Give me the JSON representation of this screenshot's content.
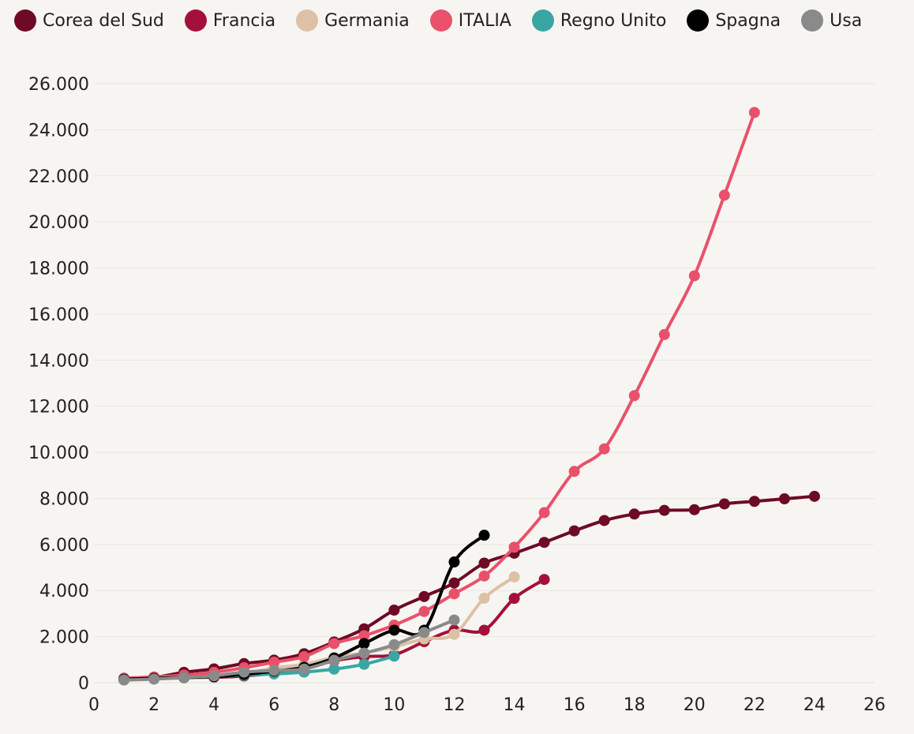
{
  "chart_data": {
    "type": "line",
    "title": "",
    "xlabel": "",
    "ylabel": "",
    "xlim": [
      0,
      26
    ],
    "ylim": [
      0,
      26000
    ],
    "x_ticks": [
      0,
      2,
      4,
      6,
      8,
      10,
      12,
      14,
      16,
      18,
      20,
      22,
      24,
      26
    ],
    "y_ticks": [
      0,
      2000,
      4000,
      6000,
      8000,
      10000,
      12000,
      14000,
      16000,
      18000,
      20000,
      22000,
      24000,
      26000
    ],
    "y_tick_labels": [
      "0",
      "2.000",
      "4.000",
      "6.000",
      "8.000",
      "10.000",
      "12.000",
      "14.000",
      "16.000",
      "18.000",
      "20.000",
      "22.000",
      "24.000",
      "26.000"
    ],
    "x_tick_labels": [
      "0",
      "2",
      "4",
      "6",
      "8",
      "10",
      "12",
      "14",
      "16",
      "18",
      "20",
      "22",
      "24",
      "26"
    ],
    "legend_position": "top",
    "grid": true,
    "series": [
      {
        "name": "Corea del Sud",
        "color": "#6e0a25",
        "x": [
          1,
          2,
          3,
          4,
          5,
          6,
          7,
          8,
          9,
          10,
          11,
          12,
          13,
          14,
          15,
          16,
          17,
          18,
          19,
          20,
          21,
          22,
          23,
          24
        ],
        "values": [
          150,
          230,
          450,
          600,
          830,
          980,
          1260,
          1770,
          2340,
          3150,
          3740,
          4330,
          5190,
          5620,
          6090,
          6590,
          7040,
          7320,
          7480,
          7510,
          7760,
          7870,
          7980,
          8090
        ]
      },
      {
        "name": "Francia",
        "color": "#a5103b",
        "x": [
          1,
          2,
          3,
          4,
          5,
          6,
          7,
          8,
          9,
          10,
          11,
          12,
          13,
          14,
          15
        ],
        "values": [
          130,
          190,
          210,
          230,
          290,
          420,
          620,
          950,
          1130,
          1210,
          1780,
          2280,
          2280,
          3660,
          4480
        ]
      },
      {
        "name": "Germania",
        "color": "#dcc1a5",
        "x": [
          1,
          2,
          3,
          4,
          5,
          6,
          7,
          8,
          9,
          10,
          11,
          12,
          13,
          14
        ],
        "values": [
          130,
          160,
          200,
          240,
          400,
          640,
          800,
          1100,
          1300,
          1560,
          1900,
          2100,
          3670,
          4590
        ]
      },
      {
        "name": "ITALIA",
        "color": "#e9516a",
        "x": [
          1,
          2,
          3,
          4,
          5,
          6,
          7,
          8,
          9,
          10,
          11,
          12,
          13,
          14,
          15,
          16,
          17,
          18,
          19,
          20,
          21,
          22
        ],
        "values": [
          200,
          250,
          330,
          450,
          650,
          890,
          1130,
          1700,
          2040,
          2500,
          3090,
          3860,
          4630,
          5880,
          7380,
          9170,
          10150,
          12460,
          15110,
          17660,
          21160,
          24750
        ]
      },
      {
        "name": "Regno Unito",
        "color": "#3aa6a3",
        "x": [
          1,
          2,
          3,
          4,
          5,
          6,
          7,
          8,
          9,
          10
        ],
        "values": [
          120,
          160,
          220,
          270,
          320,
          380,
          460,
          590,
          800,
          1150
        ]
      },
      {
        "name": "Spagna",
        "color": "#000000",
        "x": [
          1,
          2,
          3,
          4,
          5,
          6,
          7,
          8,
          9,
          10,
          11,
          12,
          13
        ],
        "values": [
          150,
          190,
          230,
          260,
          360,
          500,
          670,
          1070,
          1700,
          2280,
          2280,
          5240,
          6400
        ]
      },
      {
        "name": "Usa",
        "color": "#8a8a8a",
        "x": [
          1,
          2,
          3,
          4,
          5,
          6,
          7,
          8,
          9,
          10,
          11,
          12
        ],
        "values": [
          120,
          160,
          230,
          300,
          460,
          530,
          590,
          970,
          1280,
          1650,
          2180,
          2720
        ]
      }
    ]
  }
}
